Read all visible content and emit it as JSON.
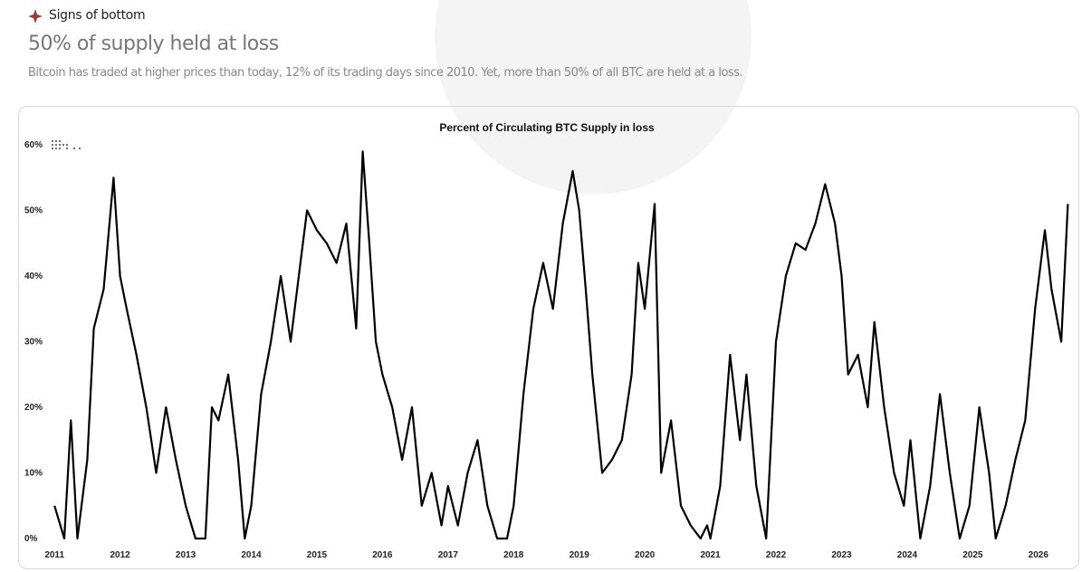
{
  "header": {
    "eyebrow": "Signs of bottom",
    "title": "50% of supply held at loss",
    "subtitle": "Bitcoin has traded at higher prices than today, 12% of its trading days since 2010. Yet, more than 50% of all BTC are held at a loss."
  },
  "chart_data": {
    "type": "line",
    "title": "Percent of Circulating BTC Supply in loss",
    "x": [
      2011.0,
      2011.15,
      2011.25,
      2011.35,
      2011.5,
      2011.6,
      2011.75,
      2011.9,
      2012.0,
      2012.1,
      2012.25,
      2012.4,
      2012.55,
      2012.7,
      2012.85,
      2013.0,
      2013.15,
      2013.3,
      2013.4,
      2013.5,
      2013.65,
      2013.8,
      2013.9,
      2014.0,
      2014.15,
      2014.3,
      2014.45,
      2014.6,
      2014.75,
      2014.85,
      2015.0,
      2015.15,
      2015.3,
      2015.45,
      2015.6,
      2015.7,
      2015.8,
      2015.9,
      2016.0,
      2016.15,
      2016.3,
      2016.45,
      2016.6,
      2016.75,
      2016.9,
      2017.0,
      2017.15,
      2017.3,
      2017.45,
      2017.6,
      2017.75,
      2017.9,
      2018.0,
      2018.15,
      2018.3,
      2018.45,
      2018.6,
      2018.75,
      2018.9,
      2019.0,
      2019.1,
      2019.2,
      2019.35,
      2019.5,
      2019.65,
      2019.8,
      2019.9,
      2020.0,
      2020.15,
      2020.25,
      2020.4,
      2020.55,
      2020.7,
      2020.85,
      2020.95,
      2021.0,
      2021.15,
      2021.3,
      2021.45,
      2021.55,
      2021.7,
      2021.85,
      2021.95,
      2022.0,
      2022.15,
      2022.3,
      2022.45,
      2022.6,
      2022.75,
      2022.9,
      2023.0,
      2023.1,
      2023.25,
      2023.4,
      2023.5,
      2023.65,
      2023.8,
      2023.95,
      2024.05,
      2024.2,
      2024.35,
      2024.5,
      2024.65,
      2024.8,
      2024.95,
      2025.1,
      2025.25,
      2025.35,
      2025.5,
      2025.65,
      2025.8,
      2025.95,
      2026.1,
      2026.2,
      2026.35,
      2026.45
    ],
    "series": [
      {
        "color": "#000000",
        "values": [
          5,
          0,
          18,
          0,
          12,
          32,
          38,
          55,
          40,
          35,
          28,
          20,
          10,
          20,
          12,
          5,
          0,
          0,
          20,
          18,
          25,
          12,
          0,
          5,
          22,
          30,
          40,
          30,
          42,
          50,
          47,
          45,
          42,
          48,
          32,
          59,
          45,
          30,
          25,
          20,
          12,
          20,
          5,
          10,
          2,
          8,
          2,
          10,
          15,
          5,
          0,
          0,
          5,
          22,
          35,
          42,
          35,
          48,
          56,
          50,
          38,
          25,
          10,
          12,
          15,
          25,
          42,
          35,
          51,
          10,
          18,
          5,
          2,
          0,
          2,
          0,
          8,
          28,
          15,
          25,
          8,
          0,
          20,
          30,
          40,
          45,
          44,
          48,
          54,
          48,
          40,
          25,
          28,
          20,
          33,
          20,
          10,
          5,
          15,
          0,
          8,
          22,
          10,
          0,
          5,
          20,
          10,
          0,
          5,
          12,
          18,
          35,
          47,
          38,
          30,
          51
        ]
      }
    ],
    "xlim": [
      2010.97,
      2026.5
    ],
    "xticks": [
      2011,
      2012,
      2013,
      2014,
      2015,
      2016,
      2017,
      2018,
      2019,
      2020,
      2021,
      2022,
      2023,
      2024,
      2025,
      2026
    ],
    "ylim": [
      0,
      60
    ],
    "yticks": [
      {
        "value": 0,
        "label": "0%"
      },
      {
        "value": 10,
        "label": "10%"
      },
      {
        "value": 20,
        "label": "20%"
      },
      {
        "value": 30,
        "label": "30%"
      },
      {
        "value": 40,
        "label": "40%"
      },
      {
        "value": 50,
        "label": "50%"
      },
      {
        "value": 60,
        "label": "60%"
      }
    ],
    "grid": false
  }
}
